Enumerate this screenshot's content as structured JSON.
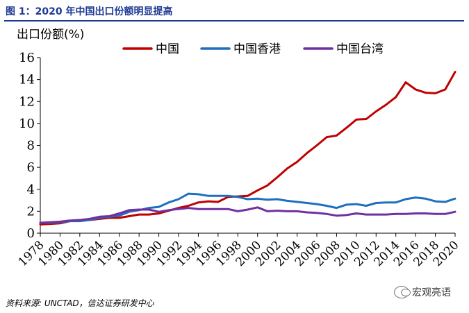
{
  "header": {
    "title": "图 1：2020 年中国出口份额明显提高"
  },
  "footer": {
    "source": "资料来源: UNCTAD，信达证券研发中心",
    "watermark": "宏观亮语"
  },
  "chart_data": {
    "type": "line",
    "title": "",
    "ylabel": "出口份额(%)",
    "xlabel": "",
    "ylim": [
      0,
      16
    ],
    "yticks": [
      0,
      2,
      4,
      6,
      8,
      10,
      12,
      14,
      16
    ],
    "xticks": [
      1978,
      1980,
      1982,
      1984,
      1986,
      1988,
      1990,
      1992,
      1994,
      1996,
      1998,
      2000,
      2002,
      2004,
      2006,
      2008,
      2010,
      2012,
      2014,
      2016,
      2018,
      2020
    ],
    "grid": false,
    "legend": "top",
    "x": [
      1978,
      1979,
      1980,
      1981,
      1982,
      1983,
      1984,
      1985,
      1986,
      1987,
      1988,
      1989,
      1990,
      1991,
      1992,
      1993,
      1994,
      1995,
      1996,
      1997,
      1998,
      1999,
      2000,
      2001,
      2002,
      2003,
      2004,
      2005,
      2006,
      2007,
      2008,
      2009,
      2010,
      2011,
      2012,
      2013,
      2014,
      2015,
      2016,
      2017,
      2018,
      2019,
      2020
    ],
    "series": [
      {
        "name": "中国",
        "color": "#c00000",
        "values": [
          0.8,
          0.85,
          0.9,
          1.1,
          1.2,
          1.2,
          1.3,
          1.4,
          1.4,
          1.55,
          1.7,
          1.7,
          1.8,
          2.05,
          2.3,
          2.5,
          2.8,
          2.9,
          2.85,
          3.3,
          3.35,
          3.4,
          3.9,
          4.35,
          5.1,
          5.9,
          6.5,
          7.3,
          8.0,
          8.75,
          8.9,
          9.6,
          10.35,
          10.4,
          11.1,
          11.7,
          12.4,
          13.75,
          13.1,
          12.8,
          12.75,
          13.1,
          14.7
        ]
      },
      {
        "name": "中国香港",
        "color": "#1f6fbf",
        "values": [
          0.95,
          0.95,
          1.0,
          1.1,
          1.1,
          1.2,
          1.4,
          1.5,
          1.6,
          1.95,
          2.1,
          2.3,
          2.4,
          2.8,
          3.1,
          3.6,
          3.55,
          3.4,
          3.4,
          3.4,
          3.3,
          3.1,
          3.15,
          3.05,
          3.1,
          2.95,
          2.85,
          2.75,
          2.65,
          2.5,
          2.3,
          2.6,
          2.65,
          2.5,
          2.75,
          2.8,
          2.8,
          3.1,
          3.25,
          3.15,
          2.9,
          2.85,
          3.15
        ]
      },
      {
        "name": "中国台湾",
        "color": "#7030a0",
        "values": [
          0.95,
          1.0,
          1.05,
          1.15,
          1.2,
          1.3,
          1.5,
          1.55,
          1.8,
          2.1,
          2.15,
          2.15,
          1.95,
          2.1,
          2.2,
          2.3,
          2.2,
          2.2,
          2.2,
          2.2,
          2.0,
          2.15,
          2.35,
          2.0,
          2.05,
          2.0,
          2.0,
          1.9,
          1.85,
          1.75,
          1.6,
          1.65,
          1.8,
          1.7,
          1.7,
          1.7,
          1.75,
          1.75,
          1.8,
          1.8,
          1.75,
          1.75,
          1.95
        ]
      }
    ]
  }
}
